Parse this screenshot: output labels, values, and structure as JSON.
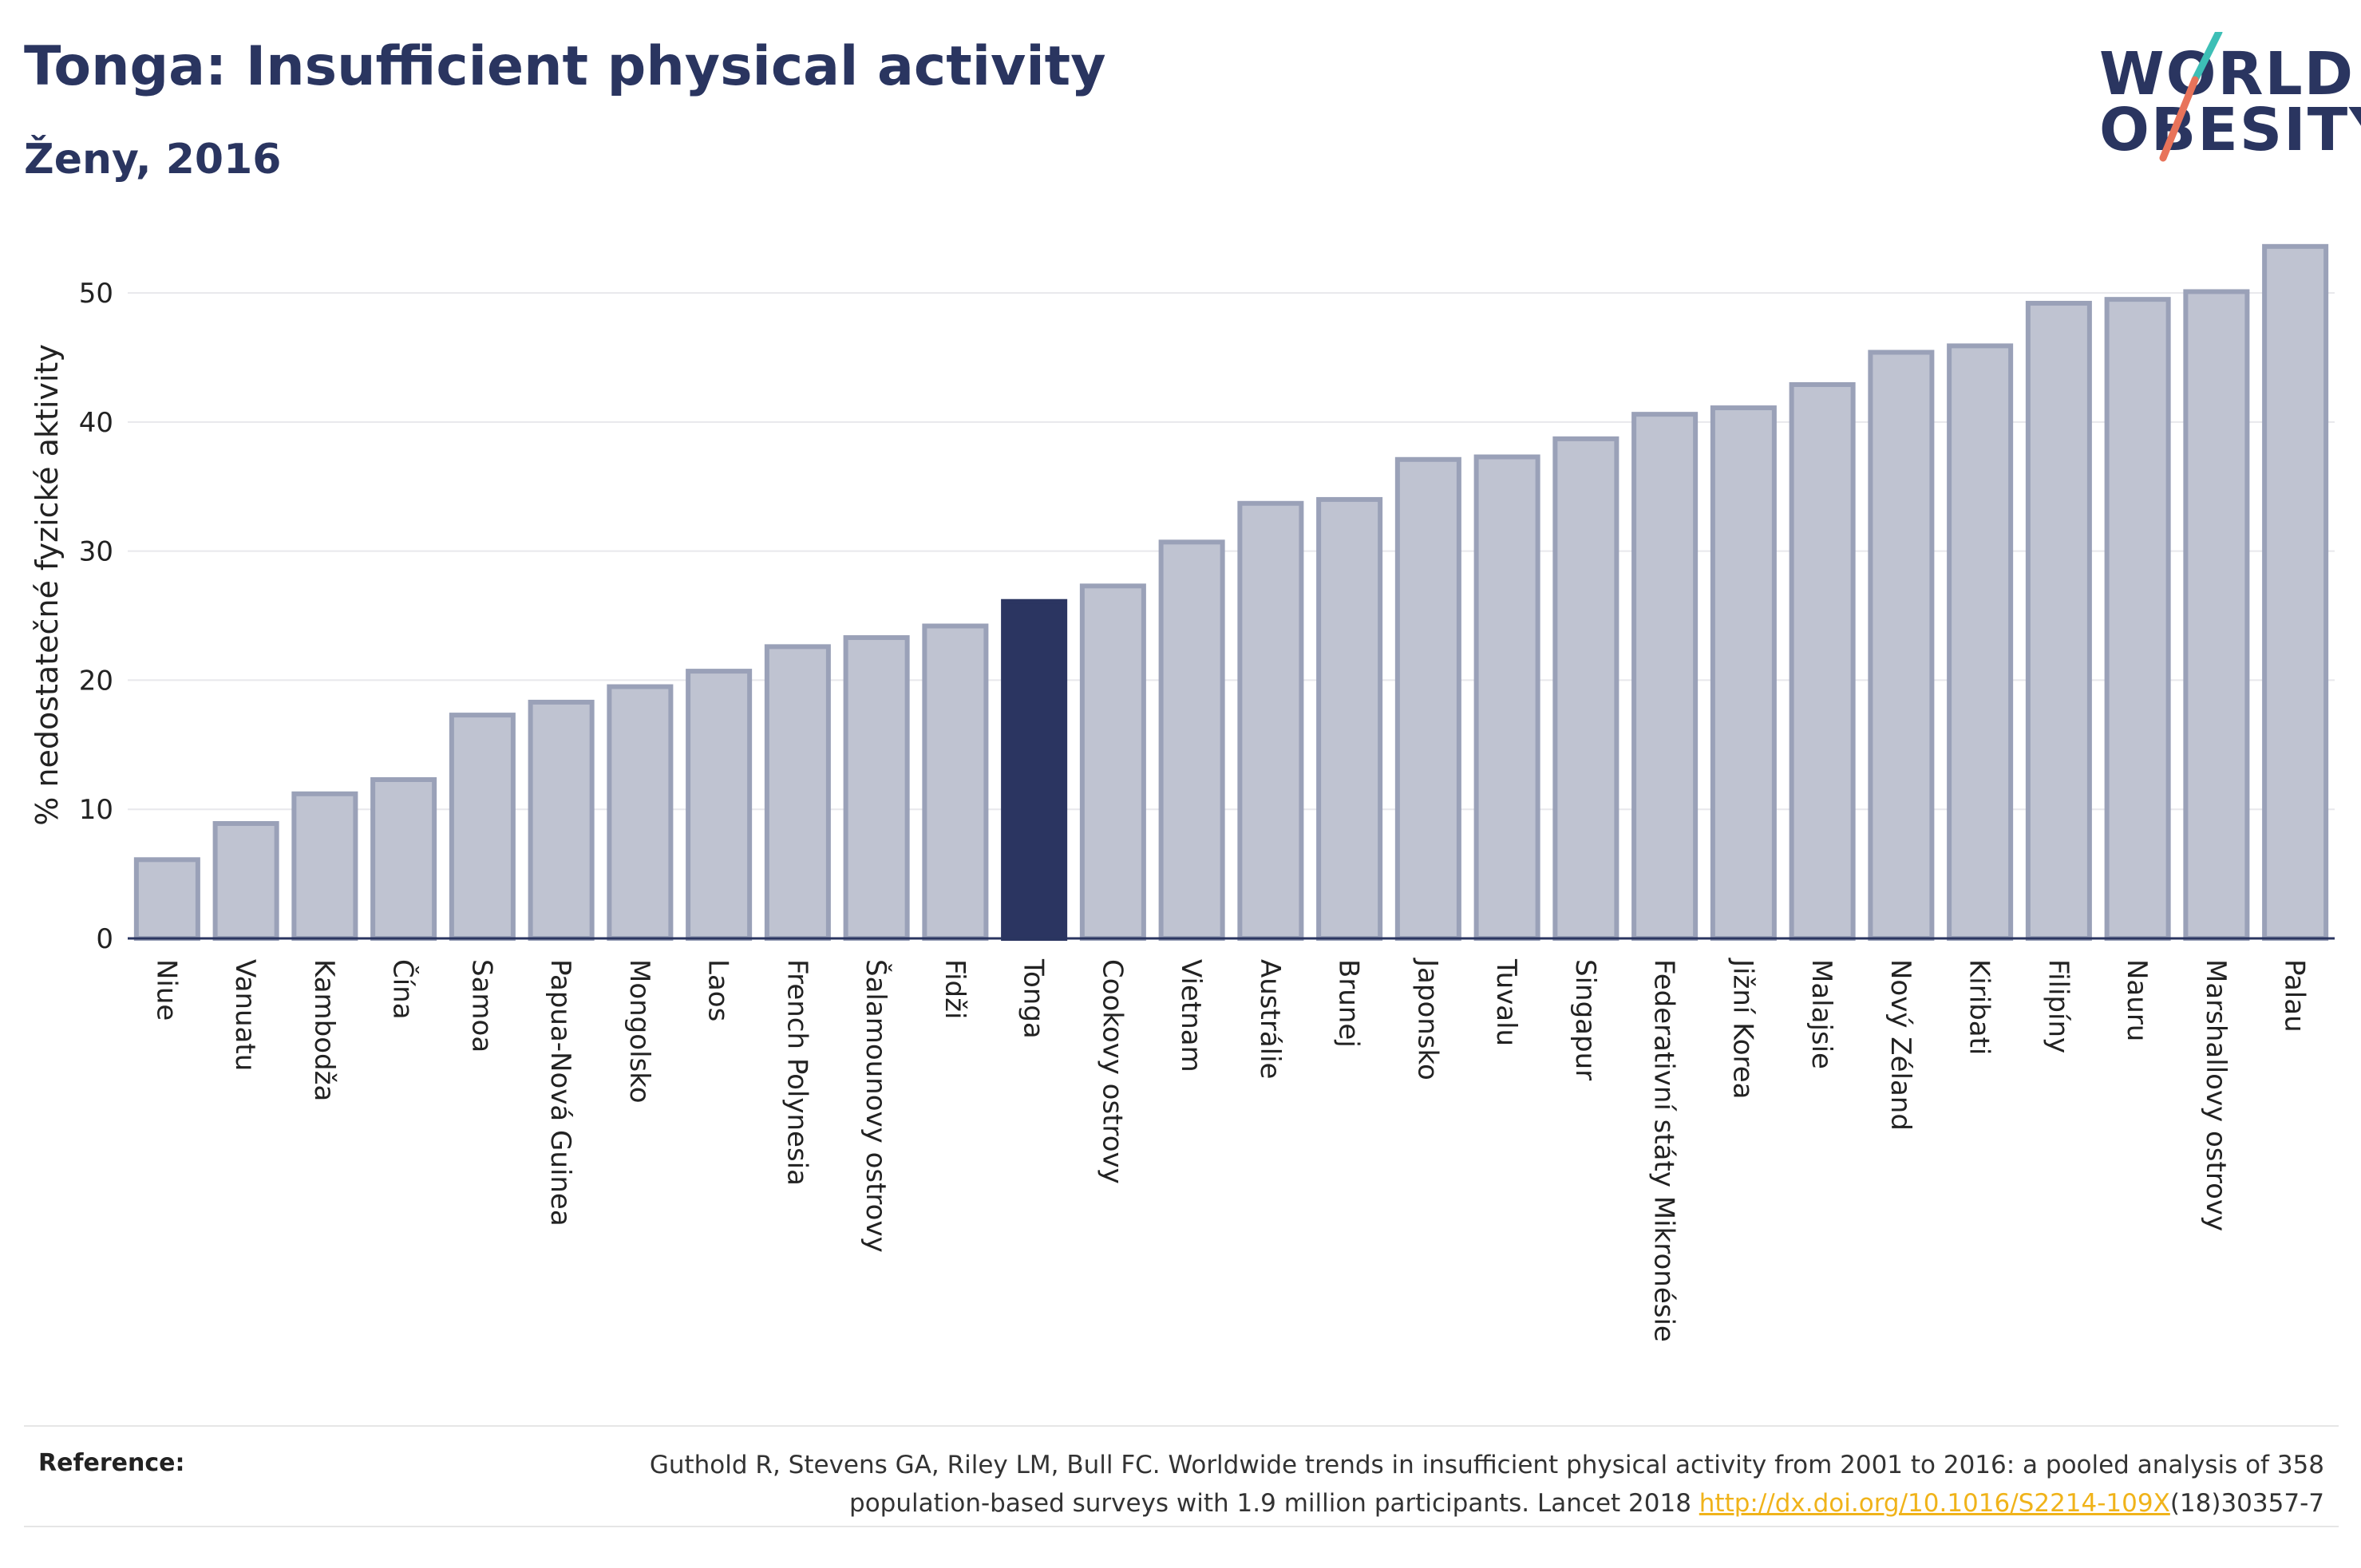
{
  "title": "Tonga: Insufficient physical activity",
  "subtitle": "Ženy, 2016",
  "logo": {
    "line1": "WORLD",
    "line2": "OBESITY"
  },
  "reference": {
    "label": "Reference:",
    "text_part1": "Guthold R, Stevens GA, Riley LM, Bull FC. Worldwide trends in insufficient physical activity from 2001 to 2016: a pooled analysis of 358",
    "text_part2": "population-based surveys with 1.9 million participants. Lancet 2018 ",
    "link": "http://dx.doi.org/10.1016/S2214-109X",
    "text_part3": "(18)30357-7"
  },
  "colors": {
    "highlight": "#2b3561",
    "bar_fill": "#bfc3d1",
    "bar_stroke": "#9aa1b8",
    "text": "#2a3560",
    "logo_teal": "#3dbfb6",
    "logo_coral": "#e8735a"
  },
  "chart_data": {
    "type": "bar",
    "title": "Tonga: Insufficient physical activity",
    "subtitle": "Ženy, 2016",
    "xlabel": "",
    "ylabel": "% nedostatečné fyzické aktivity",
    "ylim": [
      0,
      56
    ],
    "yticks": [
      0,
      10,
      20,
      30,
      40,
      50
    ],
    "grid": true,
    "highlight": "Tonga",
    "categories": [
      "Niue",
      "Vanuatu",
      "Kambodža",
      "Čína",
      "Samoa",
      "Papua-Nová Guinea",
      "Mongolsko",
      "Laos",
      "French Polynesia",
      "Šalamounovy ostrovy",
      "Fidži",
      "Tonga",
      "Cookovy ostrovy",
      "Vietnam",
      "Austrálie",
      "Brunej",
      "Japonsko",
      "Tuvalu",
      "Singapur",
      "Federativní státy Mikronésie",
      "Jižní Korea",
      "Malajsie",
      "Nový Zéland",
      "Kiribati",
      "Filipíny",
      "Nauru",
      "Marshallovy ostrovy",
      "Palau"
    ],
    "values": [
      6.1,
      8.9,
      11.2,
      12.3,
      17.3,
      18.3,
      19.5,
      20.7,
      22.6,
      23.3,
      24.2,
      26.1,
      27.3,
      30.7,
      33.7,
      34.0,
      37.1,
      37.3,
      38.7,
      40.6,
      41.1,
      42.9,
      45.4,
      45.9,
      49.2,
      49.5,
      50.1,
      53.6
    ]
  }
}
